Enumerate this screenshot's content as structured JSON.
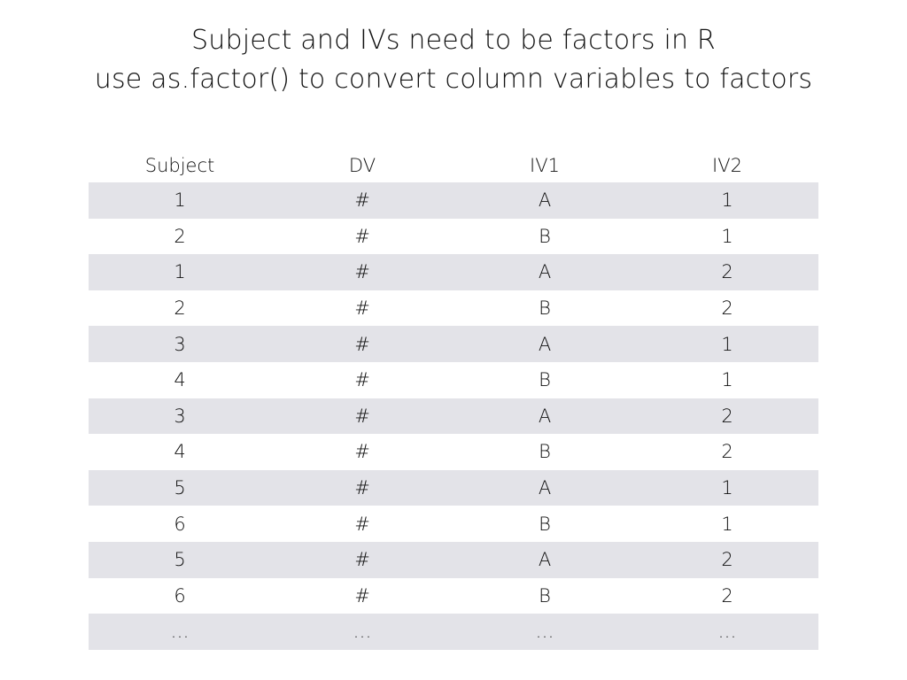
{
  "title": {
    "line1": "Subject and IVs need to be factors in R",
    "line2": "use as.factor() to convert column variables to factors"
  },
  "table": {
    "headers": [
      "Subject",
      "DV",
      "IV1",
      "IV2"
    ],
    "rows": [
      [
        "1",
        "#",
        "A",
        "1"
      ],
      [
        "2",
        "#",
        "B",
        "1"
      ],
      [
        "1",
        "#",
        "A",
        "2"
      ],
      [
        "2",
        "#",
        "B",
        "2"
      ],
      [
        "3",
        "#",
        "A",
        "1"
      ],
      [
        "4",
        "#",
        "B",
        "1"
      ],
      [
        "3",
        "#",
        "A",
        "2"
      ],
      [
        "4",
        "#",
        "B",
        "2"
      ],
      [
        "5",
        "#",
        "A",
        "1"
      ],
      [
        "6",
        "#",
        "B",
        "1"
      ],
      [
        "5",
        "#",
        "A",
        "2"
      ],
      [
        "6",
        "#",
        "B",
        "2"
      ],
      [
        "…",
        "…",
        "…",
        "…"
      ]
    ]
  },
  "colors": {
    "row_shade": "#e3e3e8",
    "background": "#ffffff",
    "text": "#111111"
  }
}
